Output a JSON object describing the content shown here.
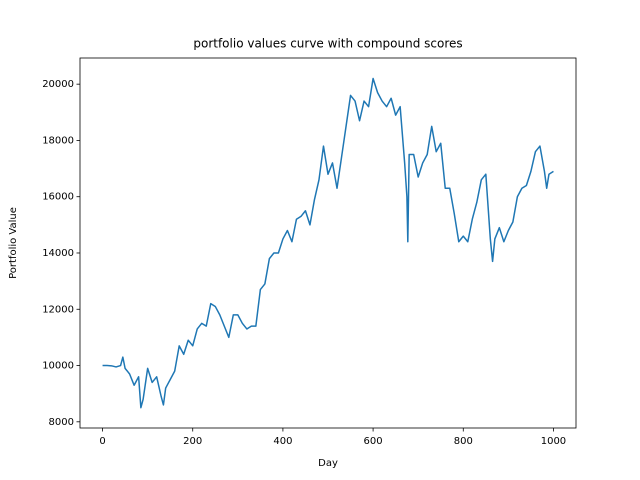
{
  "chart_data": {
    "type": "line",
    "title": "portfolio values curve with compound scores",
    "x_label": "Day",
    "y_label": "Portfolio Value",
    "xlim": [
      -50,
      1050
    ],
    "ylim": [
      7780,
      20930
    ],
    "xticks": [
      0,
      200,
      400,
      600,
      800,
      1000
    ],
    "yticks": [
      8000,
      10000,
      12000,
      14000,
      16000,
      18000,
      20000
    ],
    "grid": false,
    "series": [
      {
        "name": "portfolio",
        "color": "#1f77b4",
        "x": [
          0,
          10,
          20,
          30,
          40,
          45,
          50,
          60,
          70,
          80,
          85,
          90,
          100,
          110,
          120,
          130,
          135,
          140,
          150,
          160,
          170,
          180,
          190,
          200,
          210,
          220,
          230,
          240,
          250,
          260,
          270,
          280,
          290,
          300,
          310,
          320,
          330,
          340,
          350,
          360,
          370,
          380,
          390,
          400,
          410,
          420,
          430,
          440,
          450,
          460,
          470,
          480,
          490,
          500,
          510,
          520,
          530,
          540,
          550,
          560,
          570,
          580,
          590,
          600,
          610,
          620,
          630,
          640,
          650,
          660,
          670,
          675,
          677,
          680,
          690,
          700,
          710,
          720,
          730,
          740,
          750,
          760,
          770,
          780,
          790,
          800,
          810,
          820,
          830,
          840,
          850,
          860,
          865,
          870,
          880,
          890,
          900,
          910,
          920,
          930,
          940,
          950,
          960,
          970,
          980,
          985,
          990,
          1000
        ],
        "values": [
          10000,
          10000,
          9990,
          9950,
          10000,
          10300,
          9900,
          9700,
          9300,
          9600,
          8500,
          8800,
          9900,
          9400,
          9600,
          8900,
          8600,
          9200,
          9500,
          9800,
          10700,
          10400,
          10900,
          10700,
          11300,
          11500,
          11400,
          12200,
          12100,
          11800,
          11400,
          11000,
          11800,
          11800,
          11500,
          11300,
          11400,
          11400,
          12700,
          12900,
          13800,
          14000,
          14000,
          14500,
          14800,
          14400,
          15200,
          15300,
          15500,
          15000,
          15900,
          16600,
          17800,
          16800,
          17200,
          16300,
          17400,
          18500,
          19600,
          19400,
          18700,
          19400,
          19200,
          20200,
          19700,
          19400,
          19200,
          19500,
          18900,
          19200,
          17200,
          16000,
          14400,
          17500,
          17500,
          16700,
          17200,
          17500,
          18500,
          17600,
          17900,
          16300,
          16300,
          15400,
          14400,
          14600,
          14400,
          15200,
          15800,
          16600,
          16800,
          14500,
          13700,
          14500,
          14900,
          14400,
          14800,
          15100,
          16000,
          16300,
          16400,
          16900,
          17600,
          17800,
          16900,
          16300,
          16800,
          16900
        ]
      }
    ]
  }
}
